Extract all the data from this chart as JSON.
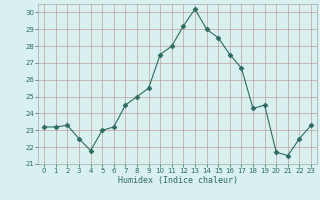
{
  "x": [
    0,
    1,
    2,
    3,
    4,
    5,
    6,
    7,
    8,
    9,
    10,
    11,
    12,
    13,
    14,
    15,
    16,
    17,
    18,
    19,
    20,
    21,
    22,
    23
  ],
  "y": [
    23.2,
    23.2,
    23.3,
    22.5,
    21.8,
    23.0,
    23.2,
    24.5,
    25.0,
    25.5,
    27.5,
    28.0,
    29.2,
    30.2,
    29.0,
    28.5,
    27.5,
    26.7,
    24.3,
    24.5,
    21.7,
    21.5,
    22.5,
    23.3
  ],
  "line_color": "#2e6b5e",
  "marker": "D",
  "marker_size": 2.5,
  "bg_color": "#d8f0ef",
  "grid_color": "#c0a0a0",
  "xlabel": "Humidex (Indice chaleur)",
  "ylim": [
    21,
    30.5
  ],
  "yticks": [
    21,
    22,
    23,
    24,
    25,
    26,
    27,
    28,
    29,
    30
  ],
  "xlim": [
    -0.5,
    23.5
  ],
  "xticks": [
    0,
    1,
    2,
    3,
    4,
    5,
    6,
    7,
    8,
    9,
    10,
    11,
    12,
    13,
    14,
    15,
    16,
    17,
    18,
    19,
    20,
    21,
    22,
    23
  ]
}
